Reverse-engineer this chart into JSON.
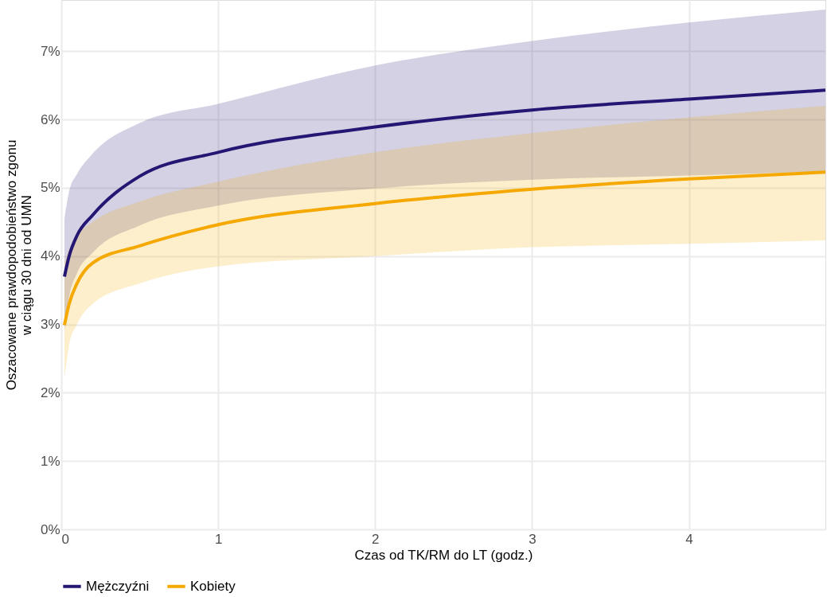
{
  "chart_data": {
    "type": "line",
    "xlabel": "Czas od TK/RM do LT (godz.)",
    "ylabel": "Oszacowane prawdopodobieństwo zgonu\nw ciągu 30 dni od UMN",
    "x": [
      0.02,
      0.05,
      0.1,
      0.2,
      0.5,
      1,
      2,
      3,
      4,
      4.87
    ],
    "series": [
      {
        "name": "Mężczyźni",
        "color": "#241773",
        "values": [
          3.7,
          4.0,
          4.3,
          4.6,
          5.17,
          5.52,
          5.89,
          6.14,
          6.3,
          6.43
        ],
        "lower": [
          2.9,
          3.4,
          3.75,
          4.05,
          4.45,
          4.74,
          4.99,
          5.12,
          5.18,
          5.24
        ],
        "upper": [
          4.55,
          4.95,
          5.2,
          5.5,
          5.95,
          6.23,
          6.79,
          7.15,
          7.42,
          7.61
        ]
      },
      {
        "name": "Kobiety",
        "color": "#f5a800",
        "values": [
          2.99,
          3.3,
          3.6,
          3.9,
          4.15,
          4.46,
          4.77,
          4.98,
          5.13,
          5.23
        ],
        "lower": [
          2.2,
          2.7,
          3.0,
          3.3,
          3.6,
          3.85,
          4.0,
          4.13,
          4.18,
          4.23
        ],
        "upper": [
          3.9,
          4.1,
          4.3,
          4.5,
          4.8,
          5.09,
          5.52,
          5.8,
          6.03,
          6.2
        ]
      }
    ],
    "xlim": [
      0,
      4.87
    ],
    "xticks": [
      0,
      1,
      2,
      3,
      4
    ],
    "ylim": [
      0,
      7.75
    ],
    "yticks": [
      {
        "value": 0,
        "label": "0%"
      },
      {
        "value": 1,
        "label": "1%"
      },
      {
        "value": 2,
        "label": "2%"
      },
      {
        "value": 3,
        "label": "3%"
      },
      {
        "value": 4,
        "label": "4%"
      },
      {
        "value": 5,
        "label": "5%"
      },
      {
        "value": 6,
        "label": "6%"
      },
      {
        "value": 7,
        "label": "7%"
      }
    ],
    "grid": true,
    "legend": "bottom",
    "line_style": "solid",
    "marker": "none"
  }
}
